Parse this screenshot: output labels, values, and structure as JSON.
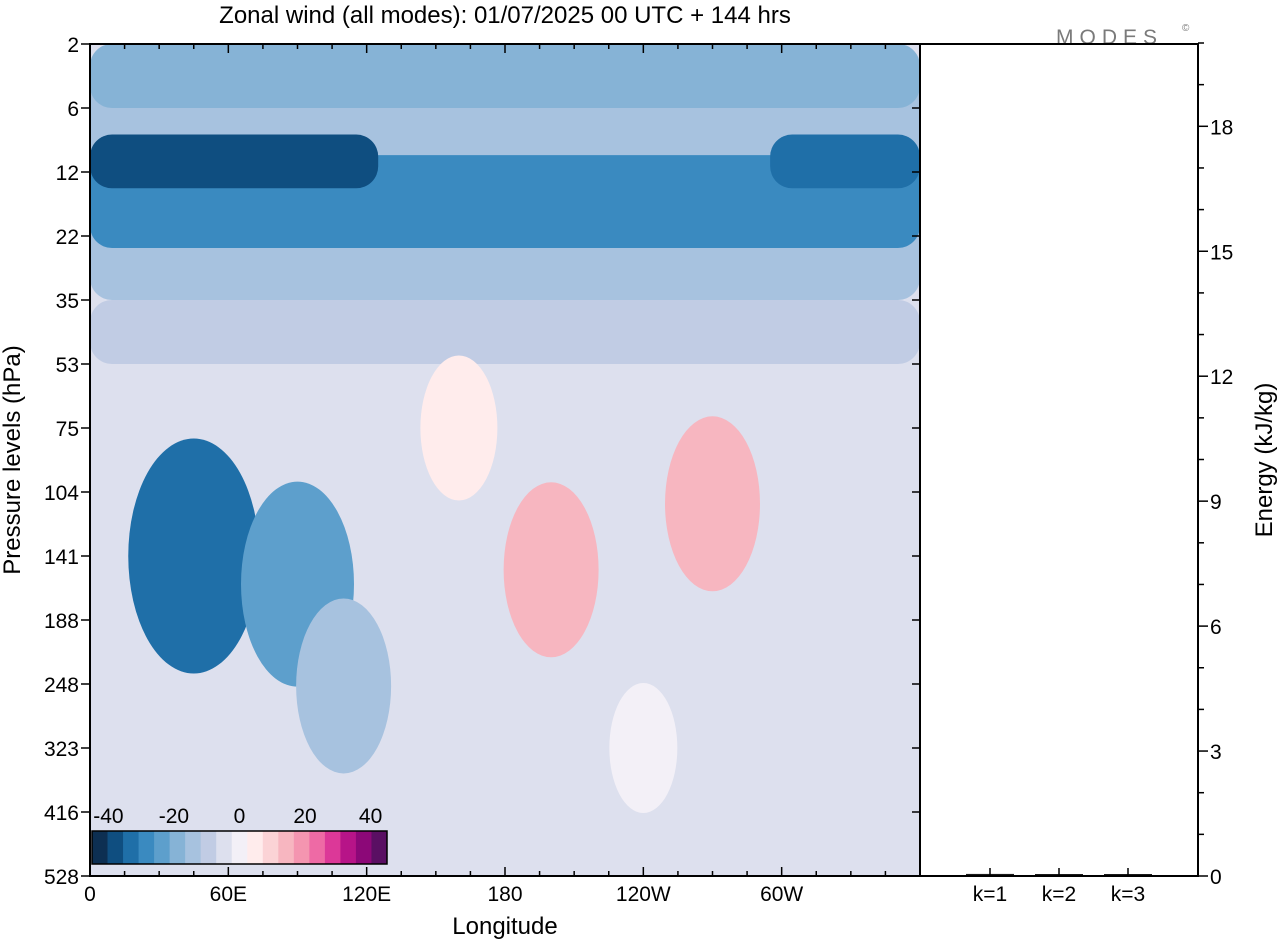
{
  "chart_data": [
    {
      "type": "heatmap",
      "title": "Zonal wind (all modes):  01/07/2025  00 UTC  + 144 hrs",
      "xlabel": "Longitude",
      "ylabel": "Pressure levels (hPa)",
      "x_ticks": [
        "0",
        "60E",
        "120E",
        "180",
        "120W",
        "60W"
      ],
      "x_tick_degrees": [
        0,
        60,
        120,
        180,
        240,
        300
      ],
      "xlim": [
        0,
        360
      ],
      "y_ticks": [
        "2",
        "6",
        "12",
        "22",
        "35",
        "53",
        "75",
        "104",
        "141",
        "188",
        "248",
        "323",
        "416",
        "528"
      ],
      "y_scale": "categorical levels, 2 hPa at top to 528 hPa at bottom",
      "colorbar": {
        "labels": [
          "-40",
          "-20",
          "0",
          "20",
          "40"
        ],
        "label_values": [
          -40,
          -20,
          0,
          20,
          40
        ],
        "min": -45,
        "max": 45,
        "step": 5,
        "colors": [
          "#0d2f52",
          "#0f4e80",
          "#1f6fa8",
          "#3a8ac0",
          "#5d9fcc",
          "#86b3d6",
          "#a7c2df",
          "#c1cce4",
          "#dde0ee",
          "#f3f0f7",
          "#ffecec",
          "#fbd3d6",
          "#f7b6c0",
          "#f495b0",
          "#ee6aa5",
          "#dc3898",
          "#b71488",
          "#8c0878",
          "#5a0f63"
        ],
        "placement": "bottom-left inside plot"
      },
      "features": [
        {
          "type": "band",
          "p_top": 2,
          "p_bottom": 35,
          "value": -15
        },
        {
          "type": "band",
          "p_top": 10,
          "p_bottom": 24,
          "value": -30
        },
        {
          "type": "band",
          "p_top": 8,
          "p_bottom": 14,
          "lon_from": 0,
          "lon_to": 125,
          "value": -38
        },
        {
          "type": "band",
          "p_top": 8,
          "p_bottom": 14,
          "lon_from": 295,
          "lon_to": 360,
          "value": -35
        },
        {
          "type": "band",
          "p_top": 2,
          "p_bottom": 6,
          "value": -20
        },
        {
          "type": "band",
          "p_top": 35,
          "p_bottom": 53,
          "value": -10
        },
        {
          "type": "blob",
          "lon": 45,
          "p": 141,
          "value": -35
        },
        {
          "type": "blob",
          "lon": 90,
          "p": 160,
          "value": -25
        },
        {
          "type": "blob",
          "lon": 110,
          "p": 250,
          "value": -15
        },
        {
          "type": "blob",
          "lon": 200,
          "p": 150,
          "value": 15
        },
        {
          "type": "blob",
          "lon": 270,
          "p": 110,
          "value": 15
        },
        {
          "type": "blob",
          "lon": 160,
          "p": 75,
          "value": 5
        },
        {
          "type": "blob",
          "lon": 240,
          "p": 323,
          "value": 0
        }
      ]
    },
    {
      "type": "bar",
      "categories": [
        "k=1",
        "k=2",
        "k=3"
      ],
      "values": [
        0.05,
        0.02,
        0.02
      ],
      "ylabel": "Energy (kJ/kg)",
      "ylim": [
        0,
        20
      ],
      "y_ticks": [
        0,
        3,
        6,
        9,
        12,
        15,
        18
      ],
      "axis_side": "right"
    }
  ],
  "logo": "MODES",
  "logo_mark": "©"
}
